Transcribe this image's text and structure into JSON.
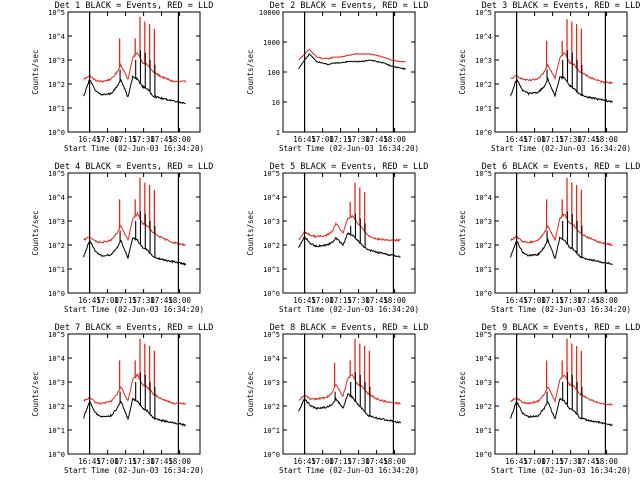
{
  "panel_title_suffix": "BLACK = Events, RED = LLD",
  "x_axis_label": "Start Time (02-Jun-03 16:34:20)",
  "y_axis_label": "Counts/sec",
  "x_ticks": [
    "16:45",
    "17:00",
    "17:15",
    "17:30",
    "17:45",
    "18:00"
  ],
  "colors": {
    "events": "#000000",
    "lld": "#e8281b",
    "axis": "#000000"
  },
  "chart_data": [
    {
      "type": "line",
      "title": "Det 1",
      "profile": "flare",
      "ytick_labels": [
        "10^0",
        "10^1",
        "10^2",
        "10^3",
        "10^4",
        "10^5"
      ],
      "ylim_log10": [
        0,
        5
      ],
      "xlim_minutes": [
        -18,
        92
      ],
      "marker_lines_minutes": [
        0,
        74
      ],
      "x": [
        -5,
        0,
        5,
        10,
        18,
        23,
        26,
        32,
        36,
        40,
        44,
        48,
        53,
        60,
        70,
        80
      ],
      "series": [
        {
          "name": "BLACK = Events",
          "log10_values": [
            1.5,
            2.2,
            1.7,
            1.55,
            1.6,
            1.9,
            2.2,
            1.45,
            2.3,
            2.2,
            1.9,
            1.8,
            1.5,
            1.4,
            1.3,
            1.2
          ]
        },
        {
          "name": "RED = LLD",
          "log10_values": [
            2.2,
            2.35,
            2.15,
            2.1,
            2.2,
            2.5,
            2.8,
            2.2,
            3.1,
            3.3,
            2.9,
            2.8,
            2.5,
            2.3,
            2.1,
            2.1
          ]
        }
      ],
      "spikes": [
        {
          "x": 25,
          "lld_peak_log10": 3.9,
          "events_peak_log10": 2.6
        },
        {
          "x": 38,
          "lld_peak_log10": 3.9,
          "events_peak_log10": 3.0
        },
        {
          "x": 42,
          "lld_peak_log10": 4.8,
          "events_peak_log10": 3.4
        },
        {
          "x": 46,
          "lld_peak_log10": 4.6,
          "events_peak_log10": 3.3
        },
        {
          "x": 50,
          "lld_peak_log10": 4.5,
          "events_peak_log10": 3.0
        },
        {
          "x": 54,
          "lld_peak_log10": 4.3,
          "events_peak_log10": 2.8
        }
      ]
    },
    {
      "type": "line",
      "title": "Det 2",
      "profile": "smooth",
      "ytick_labels": [
        "1",
        "10",
        "100",
        "1000",
        "10000"
      ],
      "ylim_log10": [
        0,
        4
      ],
      "xlim_minutes": [
        -18,
        92
      ],
      "marker_lines_minutes": [
        0,
        74
      ],
      "x": [
        -5,
        0,
        4,
        10,
        15,
        20,
        25,
        30,
        36,
        42,
        48,
        54,
        60,
        66,
        72,
        78,
        84
      ],
      "series": [
        {
          "name": "BLACK = Events",
          "log10_values": [
            2.1,
            2.4,
            2.6,
            2.35,
            2.3,
            2.25,
            2.3,
            2.3,
            2.35,
            2.35,
            2.35,
            2.4,
            2.35,
            2.3,
            2.2,
            2.15,
            2.1
          ]
        },
        {
          "name": "RED = LLD",
          "log10_values": [
            2.4,
            2.6,
            2.75,
            2.5,
            2.45,
            2.45,
            2.5,
            2.5,
            2.55,
            2.6,
            2.6,
            2.6,
            2.55,
            2.5,
            2.4,
            2.35,
            2.35
          ]
        }
      ],
      "spikes": []
    },
    {
      "type": "line",
      "title": "Det 3",
      "profile": "flare",
      "ytick_labels": [
        "10^0",
        "10^1",
        "10^2",
        "10^3",
        "10^4",
        "10^5"
      ],
      "ylim_log10": [
        0,
        5
      ],
      "xlim_minutes": [
        -18,
        92
      ],
      "marker_lines_minutes": [
        0,
        74
      ],
      "x": [
        -5,
        0,
        5,
        10,
        18,
        23,
        26,
        32,
        36,
        40,
        44,
        48,
        53,
        60,
        70,
        80
      ],
      "series": [
        {
          "name": "BLACK = Events",
          "log10_values": [
            1.5,
            2.2,
            1.75,
            1.6,
            1.65,
            1.9,
            2.2,
            1.5,
            2.3,
            2.25,
            1.95,
            1.8,
            1.55,
            1.45,
            1.35,
            1.25
          ]
        },
        {
          "name": "RED = LLD",
          "log10_values": [
            2.2,
            2.35,
            2.2,
            2.15,
            2.2,
            2.5,
            2.8,
            2.25,
            3.1,
            3.3,
            2.9,
            2.8,
            2.5,
            2.3,
            2.1,
            2.05
          ]
        }
      ],
      "spikes": [
        {
          "x": 25,
          "lld_peak_log10": 3.8,
          "events_peak_log10": 2.6
        },
        {
          "x": 38,
          "lld_peak_log10": 3.8,
          "events_peak_log10": 3.0
        },
        {
          "x": 42,
          "lld_peak_log10": 4.7,
          "events_peak_log10": 3.4
        },
        {
          "x": 46,
          "lld_peak_log10": 4.6,
          "events_peak_log10": 3.3
        },
        {
          "x": 50,
          "lld_peak_log10": 4.5,
          "events_peak_log10": 3.0
        },
        {
          "x": 54,
          "lld_peak_log10": 4.3,
          "events_peak_log10": 2.8
        }
      ]
    },
    {
      "type": "line",
      "title": "Det 4",
      "profile": "flare",
      "ytick_labels": [
        "10^0",
        "10^1",
        "10^2",
        "10^3",
        "10^4",
        "10^5"
      ],
      "ylim_log10": [
        0,
        5
      ],
      "xlim_minutes": [
        -18,
        92
      ],
      "marker_lines_minutes": [
        0,
        74
      ],
      "x": [
        -5,
        0,
        5,
        10,
        18,
        23,
        26,
        32,
        36,
        40,
        44,
        48,
        53,
        60,
        70,
        80
      ],
      "series": [
        {
          "name": "BLACK = Events",
          "log10_values": [
            1.5,
            2.2,
            1.7,
            1.55,
            1.6,
            1.9,
            2.2,
            1.45,
            2.3,
            2.2,
            1.9,
            1.8,
            1.5,
            1.4,
            1.3,
            1.2
          ]
        },
        {
          "name": "RED = LLD",
          "log10_values": [
            2.2,
            2.35,
            2.15,
            2.1,
            2.2,
            2.5,
            2.8,
            2.2,
            3.1,
            3.3,
            2.9,
            2.8,
            2.5,
            2.3,
            2.1,
            2.0
          ]
        }
      ],
      "spikes": [
        {
          "x": 25,
          "lld_peak_log10": 3.9,
          "events_peak_log10": 2.6
        },
        {
          "x": 38,
          "lld_peak_log10": 3.9,
          "events_peak_log10": 3.0
        },
        {
          "x": 42,
          "lld_peak_log10": 4.8,
          "events_peak_log10": 3.4
        },
        {
          "x": 46,
          "lld_peak_log10": 4.6,
          "events_peak_log10": 3.3
        },
        {
          "x": 50,
          "lld_peak_log10": 4.5,
          "events_peak_log10": 3.0
        },
        {
          "x": 54,
          "lld_peak_log10": 4.3,
          "events_peak_log10": 2.8
        }
      ]
    },
    {
      "type": "line",
      "title": "Det 5",
      "profile": "flare-soft",
      "ytick_labels": [
        "10^0",
        "10^1",
        "10^2",
        "10^3",
        "10^4",
        "10^5"
      ],
      "ylim_log10": [
        0,
        5
      ],
      "xlim_minutes": [
        -18,
        92
      ],
      "marker_lines_minutes": [
        0,
        74
      ],
      "x": [
        -5,
        0,
        5,
        10,
        18,
        23,
        26,
        32,
        36,
        40,
        44,
        48,
        53,
        60,
        70,
        80
      ],
      "series": [
        {
          "name": "BLACK = Events",
          "log10_values": [
            1.9,
            2.35,
            2.05,
            1.95,
            2.0,
            2.1,
            2.3,
            2.0,
            2.5,
            2.4,
            2.2,
            2.0,
            1.8,
            1.7,
            1.6,
            1.5
          ]
        },
        {
          "name": "RED = LLD",
          "log10_values": [
            2.2,
            2.55,
            2.4,
            2.35,
            2.4,
            2.55,
            2.9,
            2.5,
            3.1,
            3.2,
            2.9,
            2.7,
            2.4,
            2.25,
            2.2,
            2.2
          ]
        }
      ],
      "spikes": [
        {
          "x": 38,
          "lld_peak_log10": 3.8,
          "events_peak_log10": 2.8
        },
        {
          "x": 42,
          "lld_peak_log10": 4.6,
          "events_peak_log10": 3.3
        },
        {
          "x": 46,
          "lld_peak_log10": 4.4,
          "events_peak_log10": 3.1
        },
        {
          "x": 50,
          "lld_peak_log10": 4.2,
          "events_peak_log10": 2.9
        }
      ]
    },
    {
      "type": "line",
      "title": "Det 6",
      "profile": "flare",
      "ytick_labels": [
        "10^0",
        "10^1",
        "10^2",
        "10^3",
        "10^4",
        "10^5"
      ],
      "ylim_log10": [
        0,
        5
      ],
      "xlim_minutes": [
        -18,
        92
      ],
      "marker_lines_minutes": [
        0,
        74
      ],
      "x": [
        -5,
        0,
        5,
        10,
        18,
        23,
        26,
        32,
        36,
        40,
        44,
        48,
        53,
        60,
        70,
        80
      ],
      "series": [
        {
          "name": "BLACK = Events",
          "log10_values": [
            1.5,
            2.2,
            1.7,
            1.55,
            1.6,
            1.9,
            2.2,
            1.45,
            2.3,
            2.2,
            1.9,
            1.8,
            1.5,
            1.4,
            1.3,
            1.2
          ]
        },
        {
          "name": "RED = LLD",
          "log10_values": [
            2.2,
            2.35,
            2.15,
            2.1,
            2.2,
            2.5,
            2.8,
            2.2,
            3.1,
            3.3,
            2.9,
            2.8,
            2.5,
            2.3,
            2.1,
            2.0
          ]
        }
      ],
      "spikes": [
        {
          "x": 25,
          "lld_peak_log10": 3.9,
          "events_peak_log10": 2.6
        },
        {
          "x": 38,
          "lld_peak_log10": 3.9,
          "events_peak_log10": 3.0
        },
        {
          "x": 42,
          "lld_peak_log10": 4.8,
          "events_peak_log10": 3.4
        },
        {
          "x": 46,
          "lld_peak_log10": 4.6,
          "events_peak_log10": 3.3
        },
        {
          "x": 50,
          "lld_peak_log10": 4.5,
          "events_peak_log10": 3.0
        },
        {
          "x": 54,
          "lld_peak_log10": 4.3,
          "events_peak_log10": 2.8
        }
      ]
    },
    {
      "type": "line",
      "title": "Det 7",
      "profile": "flare",
      "ytick_labels": [
        "10^0",
        "10^1",
        "10^2",
        "10^3",
        "10^4",
        "10^5"
      ],
      "ylim_log10": [
        0,
        5
      ],
      "xlim_minutes": [
        -18,
        92
      ],
      "marker_lines_minutes": [
        0,
        74
      ],
      "x": [
        -5,
        0,
        5,
        10,
        18,
        23,
        26,
        32,
        36,
        40,
        44,
        48,
        53,
        60,
        70,
        80
      ],
      "series": [
        {
          "name": "BLACK = Events",
          "log10_values": [
            1.5,
            2.2,
            1.7,
            1.55,
            1.6,
            1.9,
            2.2,
            1.45,
            2.3,
            2.2,
            1.9,
            1.8,
            1.5,
            1.4,
            1.3,
            1.2
          ]
        },
        {
          "name": "RED = LLD",
          "log10_values": [
            2.2,
            2.35,
            2.15,
            2.1,
            2.2,
            2.5,
            2.8,
            2.2,
            3.1,
            3.3,
            2.9,
            2.8,
            2.5,
            2.3,
            2.1,
            2.1
          ]
        }
      ],
      "spikes": [
        {
          "x": 25,
          "lld_peak_log10": 3.9,
          "events_peak_log10": 2.6
        },
        {
          "x": 38,
          "lld_peak_log10": 3.9,
          "events_peak_log10": 3.0
        },
        {
          "x": 42,
          "lld_peak_log10": 4.8,
          "events_peak_log10": 3.4
        },
        {
          "x": 46,
          "lld_peak_log10": 4.6,
          "events_peak_log10": 3.3
        },
        {
          "x": 50,
          "lld_peak_log10": 4.5,
          "events_peak_log10": 3.0
        },
        {
          "x": 54,
          "lld_peak_log10": 4.3,
          "events_peak_log10": 2.8
        }
      ]
    },
    {
      "type": "line",
      "title": "Det 8",
      "profile": "flare",
      "ytick_labels": [
        "10^0",
        "10^1",
        "10^2",
        "10^3",
        "10^4",
        "10^5"
      ],
      "ylim_log10": [
        0,
        5
      ],
      "xlim_minutes": [
        -18,
        92
      ],
      "marker_lines_minutes": [
        0,
        74
      ],
      "x": [
        -5,
        0,
        5,
        10,
        18,
        23,
        26,
        32,
        36,
        40,
        44,
        48,
        53,
        60,
        70,
        80
      ],
      "series": [
        {
          "name": "BLACK = Events",
          "log10_values": [
            1.8,
            2.3,
            2.0,
            1.9,
            1.95,
            2.05,
            2.3,
            1.9,
            2.5,
            2.35,
            2.1,
            1.9,
            1.6,
            1.5,
            1.4,
            1.3
          ]
        },
        {
          "name": "RED = LLD",
          "log10_values": [
            2.2,
            2.45,
            2.3,
            2.3,
            2.35,
            2.55,
            2.9,
            2.4,
            3.15,
            3.3,
            2.9,
            2.8,
            2.5,
            2.3,
            2.15,
            2.1
          ]
        }
      ],
      "spikes": [
        {
          "x": 25,
          "lld_peak_log10": 3.8,
          "events_peak_log10": 2.6
        },
        {
          "x": 38,
          "lld_peak_log10": 3.9,
          "events_peak_log10": 3.0
        },
        {
          "x": 42,
          "lld_peak_log10": 4.8,
          "events_peak_log10": 3.4
        },
        {
          "x": 46,
          "lld_peak_log10": 4.6,
          "events_peak_log10": 3.3
        },
        {
          "x": 50,
          "lld_peak_log10": 4.5,
          "events_peak_log10": 3.0
        },
        {
          "x": 54,
          "lld_peak_log10": 4.3,
          "events_peak_log10": 2.8
        }
      ]
    },
    {
      "type": "line",
      "title": "Det 9",
      "profile": "flare",
      "ytick_labels": [
        "10^0",
        "10^1",
        "10^2",
        "10^3",
        "10^4",
        "10^5"
      ],
      "ylim_log10": [
        0,
        5
      ],
      "xlim_minutes": [
        -18,
        92
      ],
      "marker_lines_minutes": [
        0,
        74
      ],
      "x": [
        -5,
        0,
        5,
        10,
        18,
        23,
        26,
        32,
        36,
        40,
        44,
        48,
        53,
        60,
        70,
        80
      ],
      "series": [
        {
          "name": "BLACK = Events",
          "log10_values": [
            1.5,
            2.2,
            1.7,
            1.55,
            1.6,
            1.9,
            2.2,
            1.45,
            2.3,
            2.2,
            1.9,
            1.8,
            1.5,
            1.4,
            1.3,
            1.2
          ]
        },
        {
          "name": "RED = LLD",
          "log10_values": [
            2.2,
            2.35,
            2.15,
            2.1,
            2.2,
            2.5,
            2.8,
            2.2,
            3.1,
            3.3,
            2.9,
            2.8,
            2.5,
            2.3,
            2.1,
            2.05
          ]
        }
      ],
      "spikes": [
        {
          "x": 25,
          "lld_peak_log10": 3.9,
          "events_peak_log10": 2.6
        },
        {
          "x": 38,
          "lld_peak_log10": 3.9,
          "events_peak_log10": 3.0
        },
        {
          "x": 42,
          "lld_peak_log10": 4.8,
          "events_peak_log10": 3.4
        },
        {
          "x": 46,
          "lld_peak_log10": 4.6,
          "events_peak_log10": 3.3
        },
        {
          "x": 50,
          "lld_peak_log10": 4.5,
          "events_peak_log10": 3.0
        },
        {
          "x": 54,
          "lld_peak_log10": 4.3,
          "events_peak_log10": 2.8
        }
      ]
    }
  ]
}
